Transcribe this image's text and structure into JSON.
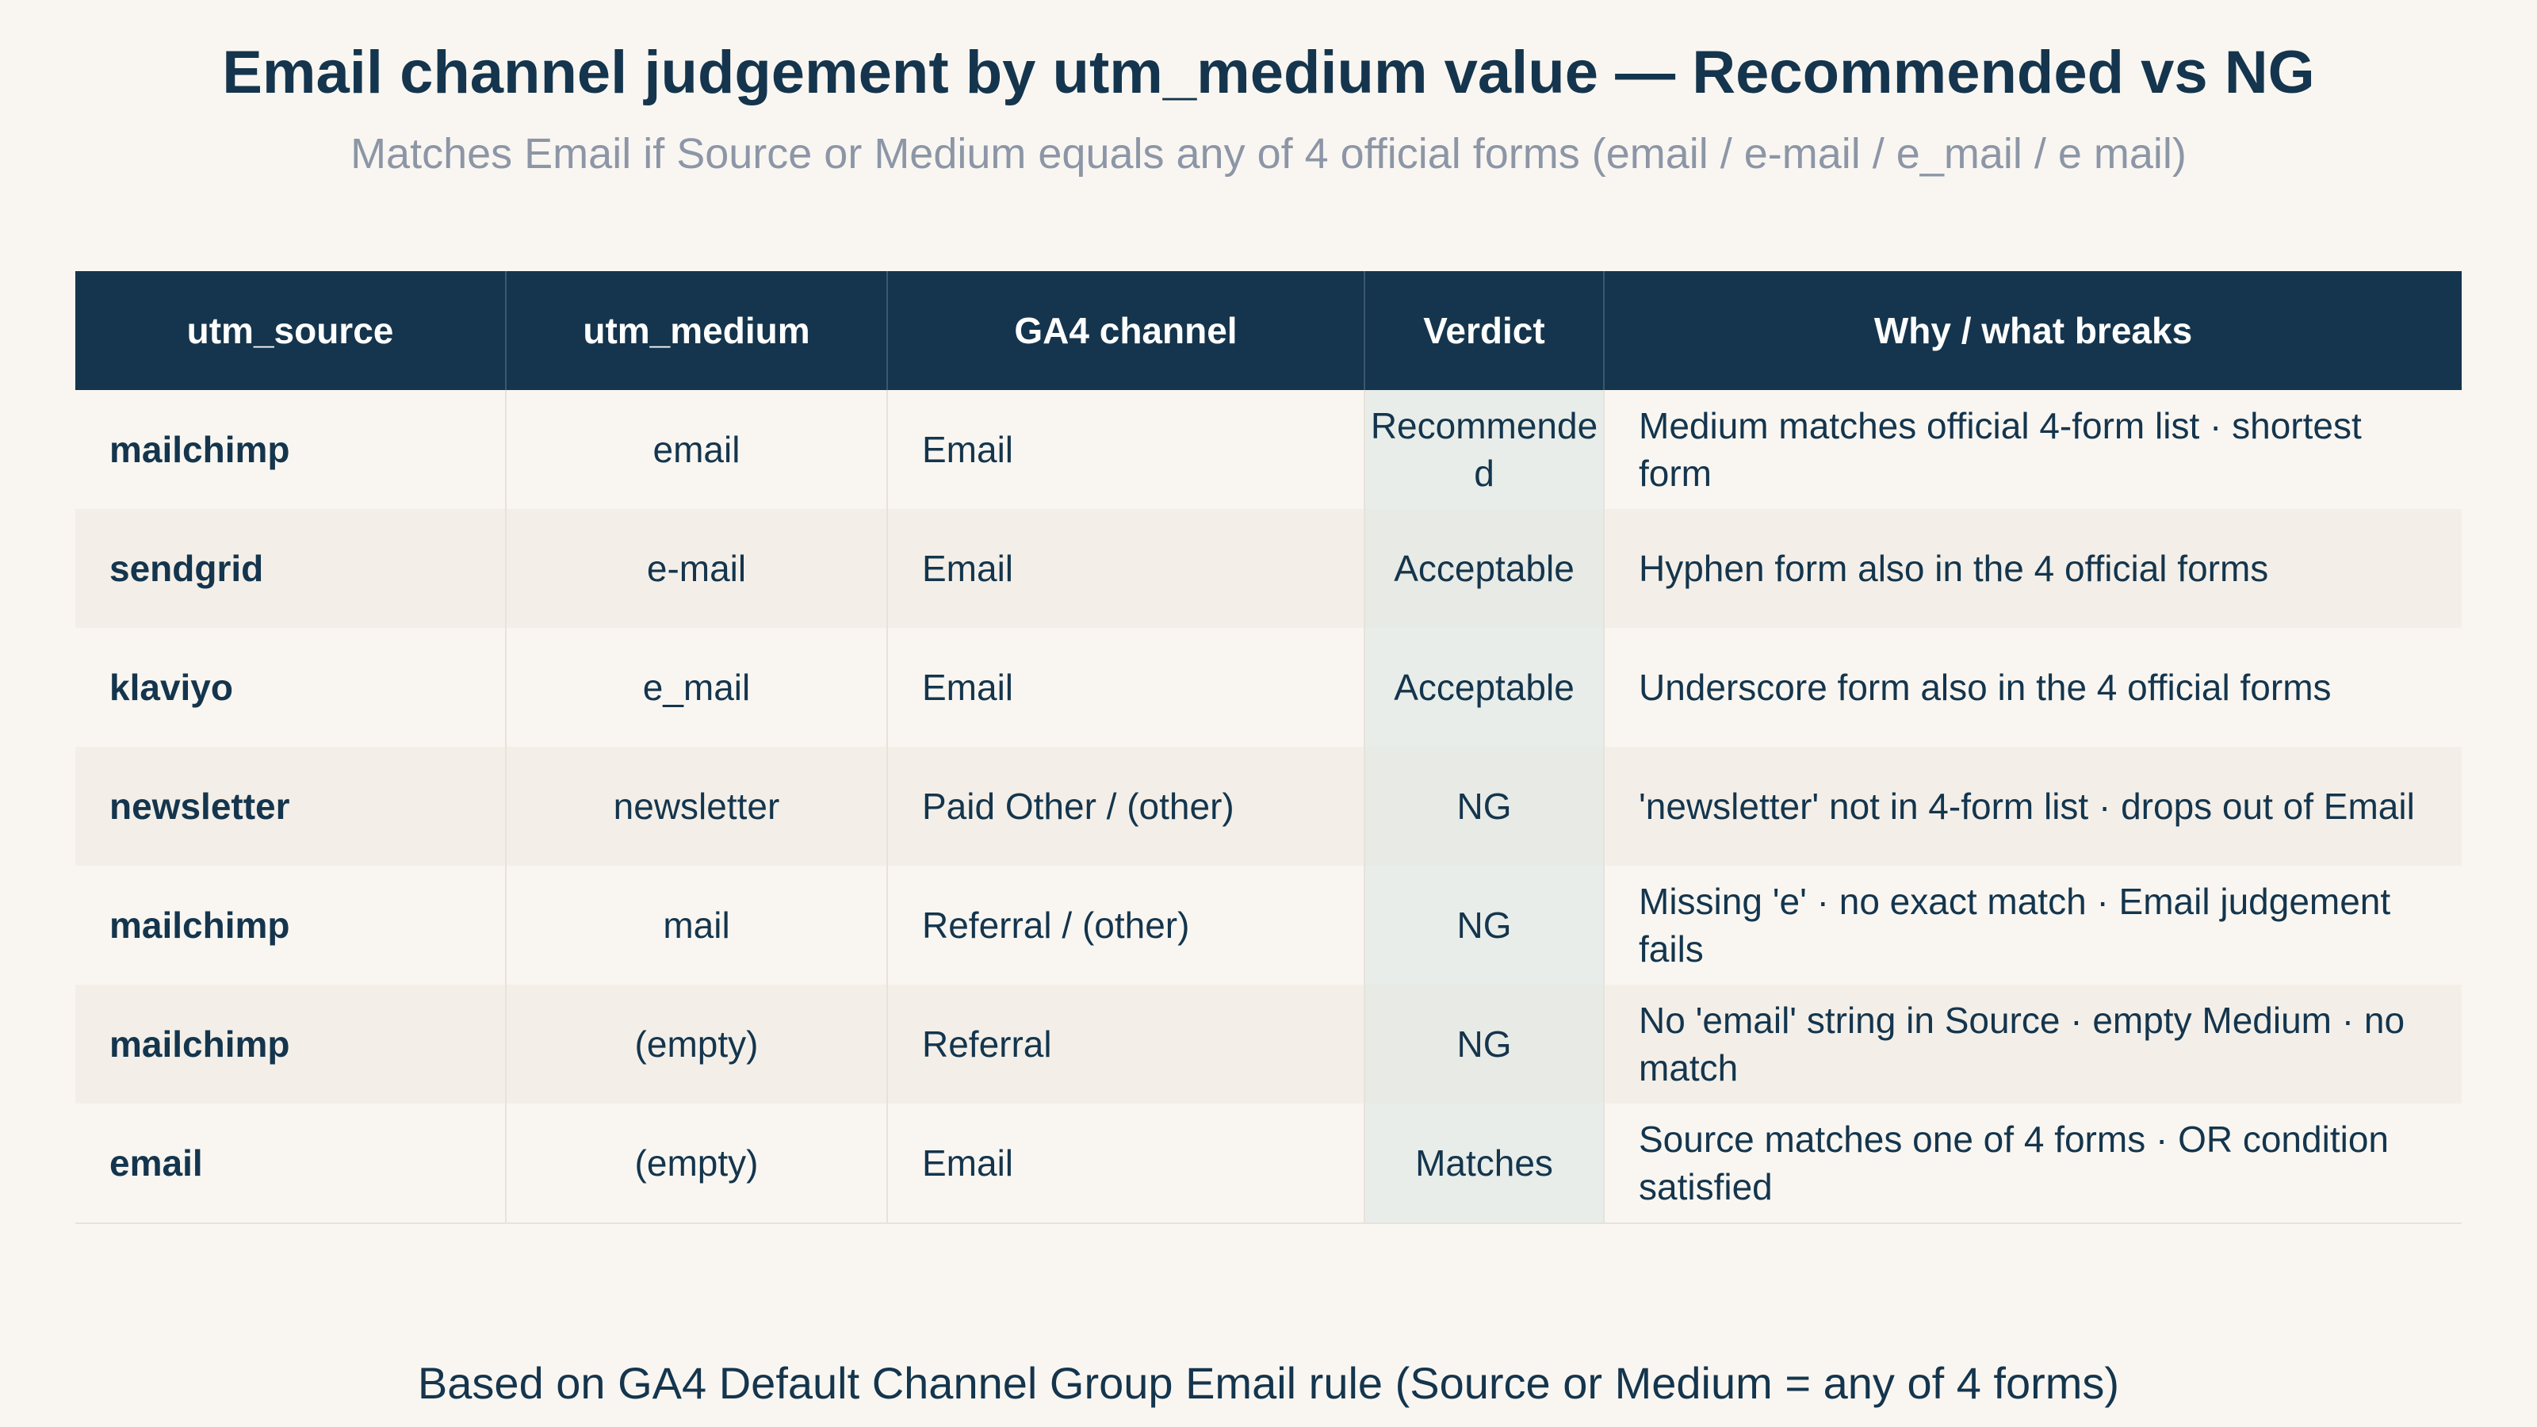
{
  "title": "Email channel judgement by utm_medium value — Recommended vs NG",
  "subtitle": "Matches Email if Source or Medium equals any of 4 official forms (email / e-mail / e_mail / e mail)",
  "table": {
    "headers": [
      "utm_source",
      "utm_medium",
      "GA4 channel",
      "Verdict",
      "Why / what breaks"
    ],
    "rows": [
      {
        "source": "mailchimp",
        "medium": "email",
        "channel": "Email",
        "verdict": "Recommended",
        "why": "Medium matches official 4-form list · shortest form"
      },
      {
        "source": "sendgrid",
        "medium": "e-mail",
        "channel": "Email",
        "verdict": "Acceptable",
        "why": "Hyphen form also in the 4 official forms"
      },
      {
        "source": "klaviyo",
        "medium": "e_mail",
        "channel": "Email",
        "verdict": "Acceptable",
        "why": "Underscore form also in the 4 official forms"
      },
      {
        "source": "newsletter",
        "medium": "newsletter",
        "channel": "Paid Other / (other)",
        "verdict": "NG",
        "why": "'newsletter' not in 4-form list · drops out of Email"
      },
      {
        "source": "mailchimp",
        "medium": "mail",
        "channel": "Referral / (other)",
        "verdict": "NG",
        "why": "Missing 'e' · no exact match · Email judgement fails"
      },
      {
        "source": "mailchimp",
        "medium": "(empty)",
        "channel": "Referral",
        "verdict": "NG",
        "why": "No 'email' string in Source · empty Medium · no match"
      },
      {
        "source": "email",
        "medium": "(empty)",
        "channel": "Email",
        "verdict": "Matches",
        "why": "Source matches one of 4 forms · OR condition satisfied"
      }
    ]
  },
  "footer": "Based on GA4 Default Channel Group Email rule (Source or Medium = any of 4 forms)",
  "colors": {
    "header_bg": "#14354d",
    "text": "#14354d",
    "subtitle": "#8c96a6",
    "page_bg": "#f9f6f1",
    "row_alt": "#f3efe8",
    "verdict_bg": "#e8ede9"
  }
}
